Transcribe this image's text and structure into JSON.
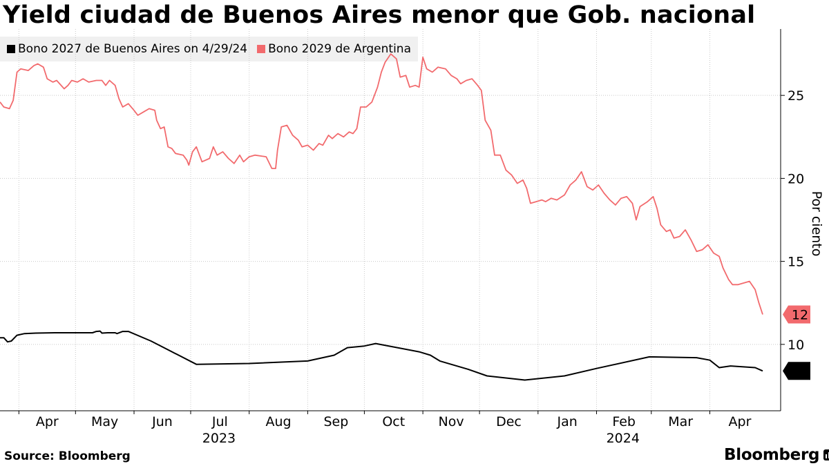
{
  "title": "Yield ciudad de Buenos Aires menor que Gob. nacional",
  "source": "Source: Bloomberg",
  "brand": "Bloomberg",
  "chart_data": {
    "type": "line",
    "title": "Yield ciudad de Buenos Aires menor que Gob. nacional",
    "ylabel": "Por ciento",
    "ylim": [
      6,
      29
    ],
    "yticks": [
      10,
      15,
      20,
      25
    ],
    "grid": true,
    "legend_position": "top-left",
    "x_months": [
      {
        "label": "Apr",
        "date": "2023-04-01"
      },
      {
        "label": "May",
        "date": "2023-05-01"
      },
      {
        "label": "Jun",
        "date": "2023-06-01"
      },
      {
        "label": "Jul",
        "date": "2023-07-01"
      },
      {
        "label": "Aug",
        "date": "2023-08-01"
      },
      {
        "label": "Sep",
        "date": "2023-09-01"
      },
      {
        "label": "Oct",
        "date": "2023-10-01"
      },
      {
        "label": "Nov",
        "date": "2023-11-01"
      },
      {
        "label": "Dec",
        "date": "2023-12-01"
      },
      {
        "label": "Jan",
        "date": "2024-01-01"
      },
      {
        "label": "Feb",
        "date": "2024-02-01"
      },
      {
        "label": "Mar",
        "date": "2024-03-01"
      },
      {
        "label": "Apr",
        "date": "2024-04-01"
      }
    ],
    "years": [
      {
        "label": "2023",
        "date": "2023-07-16"
      },
      {
        "label": "2024",
        "date": "2024-02-15"
      }
    ],
    "series": [
      {
        "name": "Bono 2027 de Buenos Aires on 4/29/24",
        "color": "#000000",
        "end_label": "8",
        "points": [
          [
            "2023-03-22",
            10.4
          ],
          [
            "2023-03-24",
            10.4
          ],
          [
            "2023-03-26",
            10.15
          ],
          [
            "2023-03-28",
            10.2
          ],
          [
            "2023-03-31",
            10.55
          ],
          [
            "2023-04-04",
            10.65
          ],
          [
            "2023-04-10",
            10.68
          ],
          [
            "2023-04-20",
            10.7
          ],
          [
            "2023-05-01",
            10.7
          ],
          [
            "2023-05-10",
            10.7
          ],
          [
            "2023-05-12",
            10.78
          ],
          [
            "2023-05-14",
            10.8
          ],
          [
            "2023-05-15",
            10.68
          ],
          [
            "2023-05-18",
            10.7
          ],
          [
            "2023-05-22",
            10.7
          ],
          [
            "2023-05-23",
            10.65
          ],
          [
            "2023-05-26",
            10.78
          ],
          [
            "2023-05-29",
            10.78
          ],
          [
            "2023-06-10",
            10.2
          ],
          [
            "2023-07-04",
            8.8
          ],
          [
            "2023-08-01",
            8.85
          ],
          [
            "2023-09-01",
            9.0
          ],
          [
            "2023-09-15",
            9.35
          ],
          [
            "2023-09-22",
            9.8
          ],
          [
            "2023-10-01",
            9.9
          ],
          [
            "2023-10-07",
            10.05
          ],
          [
            "2023-10-30",
            9.55
          ],
          [
            "2023-11-05",
            9.35
          ],
          [
            "2023-11-10",
            9.0
          ],
          [
            "2023-11-25",
            8.5
          ],
          [
            "2023-12-05",
            8.1
          ],
          [
            "2023-12-25",
            7.85
          ],
          [
            "2024-01-15",
            8.1
          ],
          [
            "2024-02-01",
            8.55
          ],
          [
            "2024-02-29",
            9.25
          ],
          [
            "2024-03-25",
            9.2
          ],
          [
            "2024-04-01",
            9.05
          ],
          [
            "2024-04-06",
            8.6
          ],
          [
            "2024-04-12",
            8.7
          ],
          [
            "2024-04-25",
            8.6
          ],
          [
            "2024-04-29",
            8.4
          ]
        ]
      },
      {
        "name": "Bono 2029 de Argentina",
        "color": "#f26a6d",
        "end_label": "12",
        "points": [
          [
            "2023-03-22",
            24.6
          ],
          [
            "2023-03-24",
            24.3
          ],
          [
            "2023-03-27",
            24.2
          ],
          [
            "2023-03-29",
            24.7
          ],
          [
            "2023-03-31",
            26.4
          ],
          [
            "2023-04-02",
            26.6
          ],
          [
            "2023-04-06",
            26.5
          ],
          [
            "2023-04-09",
            26.8
          ],
          [
            "2023-04-11",
            26.9
          ],
          [
            "2023-04-14",
            26.7
          ],
          [
            "2023-04-16",
            26.0
          ],
          [
            "2023-04-19",
            25.8
          ],
          [
            "2023-04-21",
            25.9
          ],
          [
            "2023-04-25",
            25.4
          ],
          [
            "2023-04-27",
            25.6
          ],
          [
            "2023-04-29",
            25.9
          ],
          [
            "2023-05-02",
            25.8
          ],
          [
            "2023-05-05",
            26.0
          ],
          [
            "2023-05-08",
            25.8
          ],
          [
            "2023-05-12",
            25.9
          ],
          [
            "2023-05-15",
            25.9
          ],
          [
            "2023-05-17",
            25.6
          ],
          [
            "2023-05-19",
            25.9
          ],
          [
            "2023-05-22",
            25.6
          ],
          [
            "2023-05-24",
            24.8
          ],
          [
            "2023-05-26",
            24.3
          ],
          [
            "2023-05-29",
            24.5
          ],
          [
            "2023-06-01",
            24.1
          ],
          [
            "2023-06-03",
            23.8
          ],
          [
            "2023-06-06",
            24.0
          ],
          [
            "2023-06-09",
            24.2
          ],
          [
            "2023-06-12",
            24.1
          ],
          [
            "2023-06-13",
            23.5
          ],
          [
            "2023-06-15",
            23.0
          ],
          [
            "2023-06-17",
            23.1
          ],
          [
            "2023-06-19",
            21.9
          ],
          [
            "2023-06-21",
            21.8
          ],
          [
            "2023-06-23",
            21.5
          ],
          [
            "2023-06-27",
            21.4
          ],
          [
            "2023-06-29",
            21.1
          ],
          [
            "2023-06-30",
            20.8
          ],
          [
            "2023-07-02",
            21.6
          ],
          [
            "2023-07-04",
            21.9
          ],
          [
            "2023-07-07",
            21.0
          ],
          [
            "2023-07-11",
            21.2
          ],
          [
            "2023-07-13",
            21.9
          ],
          [
            "2023-07-15",
            21.4
          ],
          [
            "2023-07-18",
            21.6
          ],
          [
            "2023-07-21",
            21.2
          ],
          [
            "2023-07-24",
            20.9
          ],
          [
            "2023-07-27",
            21.4
          ],
          [
            "2023-07-29",
            21.0
          ],
          [
            "2023-08-01",
            21.3
          ],
          [
            "2023-08-04",
            21.4
          ],
          [
            "2023-08-10",
            21.3
          ],
          [
            "2023-08-13",
            20.6
          ],
          [
            "2023-08-15",
            20.6
          ],
          [
            "2023-08-16",
            21.7
          ],
          [
            "2023-08-18",
            23.1
          ],
          [
            "2023-08-21",
            23.2
          ],
          [
            "2023-08-24",
            22.6
          ],
          [
            "2023-08-27",
            22.3
          ],
          [
            "2023-08-29",
            21.9
          ],
          [
            "2023-09-01",
            22.0
          ],
          [
            "2023-09-04",
            21.7
          ],
          [
            "2023-09-07",
            22.1
          ],
          [
            "2023-09-09",
            22.0
          ],
          [
            "2023-09-12",
            22.6
          ],
          [
            "2023-09-14",
            22.4
          ],
          [
            "2023-09-17",
            22.7
          ],
          [
            "2023-09-20",
            22.5
          ],
          [
            "2023-09-23",
            22.8
          ],
          [
            "2023-09-25",
            22.7
          ],
          [
            "2023-09-27",
            23.0
          ],
          [
            "2023-09-29",
            24.3
          ],
          [
            "2023-10-02",
            24.3
          ],
          [
            "2023-10-05",
            24.6
          ],
          [
            "2023-10-08",
            25.5
          ],
          [
            "2023-10-10",
            26.4
          ],
          [
            "2023-10-12",
            27.0
          ],
          [
            "2023-10-15",
            27.5
          ],
          [
            "2023-10-18",
            27.2
          ],
          [
            "2023-10-20",
            26.1
          ],
          [
            "2023-10-23",
            26.2
          ],
          [
            "2023-10-25",
            25.5
          ],
          [
            "2023-10-28",
            25.6
          ],
          [
            "2023-10-30",
            25.5
          ],
          [
            "2023-11-01",
            27.3
          ],
          [
            "2023-11-03",
            26.6
          ],
          [
            "2023-11-06",
            26.4
          ],
          [
            "2023-11-09",
            26.7
          ],
          [
            "2023-11-13",
            26.6
          ],
          [
            "2023-11-16",
            26.2
          ],
          [
            "2023-11-19",
            26.0
          ],
          [
            "2023-11-21",
            25.7
          ],
          [
            "2023-11-24",
            25.9
          ],
          [
            "2023-11-27",
            26.0
          ],
          [
            "2023-11-30",
            25.6
          ],
          [
            "2023-12-02",
            25.3
          ],
          [
            "2023-12-04",
            23.5
          ],
          [
            "2023-12-07",
            22.9
          ],
          [
            "2023-12-09",
            21.4
          ],
          [
            "2023-12-12",
            21.4
          ],
          [
            "2023-12-15",
            20.5
          ],
          [
            "2023-12-18",
            20.2
          ],
          [
            "2023-12-21",
            19.7
          ],
          [
            "2023-12-24",
            19.9
          ],
          [
            "2023-12-26",
            19.4
          ],
          [
            "2023-12-28",
            18.5
          ],
          [
            "2023-12-31",
            18.6
          ],
          [
            "2024-01-03",
            18.7
          ],
          [
            "2024-01-05",
            18.6
          ],
          [
            "2024-01-08",
            18.8
          ],
          [
            "2024-01-11",
            18.7
          ],
          [
            "2024-01-15",
            19.0
          ],
          [
            "2024-01-18",
            19.6
          ],
          [
            "2024-01-21",
            19.9
          ],
          [
            "2024-01-24",
            20.4
          ],
          [
            "2024-01-27",
            19.5
          ],
          [
            "2024-01-30",
            19.3
          ],
          [
            "2024-02-02",
            19.6
          ],
          [
            "2024-02-05",
            19.1
          ],
          [
            "2024-02-08",
            18.7
          ],
          [
            "2024-02-11",
            18.4
          ],
          [
            "2024-02-14",
            18.8
          ],
          [
            "2024-02-17",
            18.9
          ],
          [
            "2024-02-20",
            18.5
          ],
          [
            "2024-02-22",
            17.5
          ],
          [
            "2024-02-24",
            18.3
          ],
          [
            "2024-02-28",
            18.6
          ],
          [
            "2024-03-02",
            18.9
          ],
          [
            "2024-03-04",
            18.2
          ],
          [
            "2024-03-06",
            17.2
          ],
          [
            "2024-03-09",
            16.8
          ],
          [
            "2024-03-11",
            16.9
          ],
          [
            "2024-03-13",
            16.4
          ],
          [
            "2024-03-16",
            16.5
          ],
          [
            "2024-03-19",
            16.9
          ],
          [
            "2024-03-22",
            16.3
          ],
          [
            "2024-03-25",
            15.6
          ],
          [
            "2024-03-28",
            15.7
          ],
          [
            "2024-03-31",
            16.0
          ],
          [
            "2024-04-03",
            15.5
          ],
          [
            "2024-04-06",
            15.3
          ],
          [
            "2024-04-08",
            14.6
          ],
          [
            "2024-04-11",
            13.9
          ],
          [
            "2024-04-13",
            13.6
          ],
          [
            "2024-04-16",
            13.6
          ],
          [
            "2024-04-19",
            13.7
          ],
          [
            "2024-04-22",
            13.8
          ],
          [
            "2024-04-25",
            13.3
          ],
          [
            "2024-04-27",
            12.5
          ],
          [
            "2024-04-29",
            11.8
          ]
        ]
      }
    ]
  }
}
